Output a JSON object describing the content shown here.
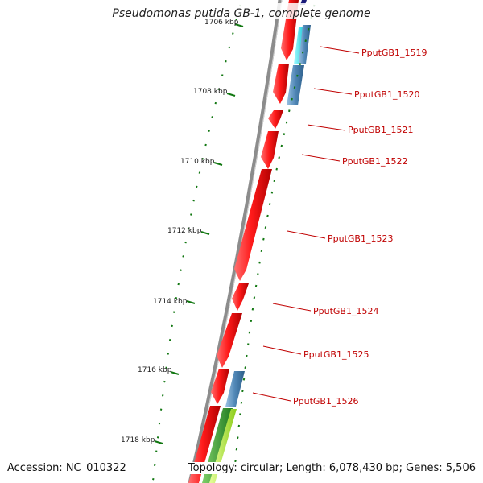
{
  "map": {
    "title": "Pseudomonas putida GB-1, complete genome",
    "accession_text": "Accession: NC_010322",
    "summary_text": "Topology: circular; Length: 6,078,430 bp; Genes: 5,506",
    "colors": {
      "backbone": "#8c8c8c",
      "cds": "#ee1111",
      "blue_feature": "#4f86b5",
      "cyan_feature": "#22dde8",
      "green_feature": "#3a9a2a",
      "lime_feature": "#aaee33",
      "tick": "#117711",
      "label": "#c00000"
    },
    "scale_ticks": [
      {
        "label": "1706 kbp"
      },
      {
        "label": "1708 kbp"
      },
      {
        "label": "1710 kbp"
      },
      {
        "label": "1712 kbp"
      },
      {
        "label": "1714 kbp"
      },
      {
        "label": "1716 kbp"
      },
      {
        "label": "1718 kbp"
      }
    ],
    "genes": [
      {
        "label": "PputGB1_1519"
      },
      {
        "label": "PputGB1_1520"
      },
      {
        "label": "PputGB1_1521"
      },
      {
        "label": "PputGB1_1522"
      },
      {
        "label": "PputGB1_1523"
      },
      {
        "label": "PputGB1_1524"
      },
      {
        "label": "PputGB1_1525"
      },
      {
        "label": "PputGB1_1526"
      }
    ]
  }
}
